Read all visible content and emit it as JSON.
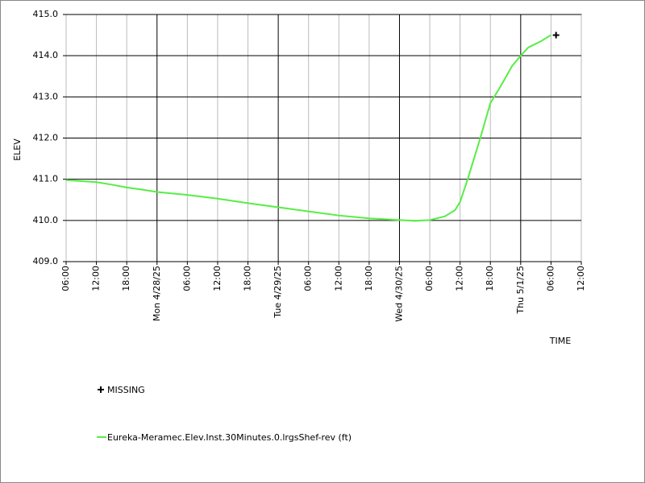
{
  "chart_data": {
    "type": "line",
    "x_label": "TIME",
    "y_label": "ELEV",
    "xlim": [
      0,
      102
    ],
    "ylim": [
      409,
      415
    ],
    "xticks": [
      {
        "value": 0,
        "label": "06:00"
      },
      {
        "value": 6,
        "label": "12:00"
      },
      {
        "value": 12,
        "label": "18:00"
      },
      {
        "value": 18,
        "label": "Mon 4/28/25"
      },
      {
        "value": 24,
        "label": "06:00"
      },
      {
        "value": 30,
        "label": "12:00"
      },
      {
        "value": 36,
        "label": "18:00"
      },
      {
        "value": 42,
        "label": "Tue 4/29/25"
      },
      {
        "value": 48,
        "label": "06:00"
      },
      {
        "value": 54,
        "label": "12:00"
      },
      {
        "value": 60,
        "label": "18:00"
      },
      {
        "value": 66,
        "label": "Wed 4/30/25"
      },
      {
        "value": 72,
        "label": "06:00"
      },
      {
        "value": 78,
        "label": "12:00"
      },
      {
        "value": 84,
        "label": "18:00"
      },
      {
        "value": 90,
        "label": "Thu 5/1/25"
      },
      {
        "value": 96,
        "label": "06:00"
      },
      {
        "value": 102,
        "label": "12:00"
      }
    ],
    "yticks": [
      {
        "value": 409,
        "label": "409.0"
      },
      {
        "value": 410,
        "label": "410.0"
      },
      {
        "value": 411,
        "label": "411.0"
      },
      {
        "value": 412,
        "label": "412.0"
      },
      {
        "value": 413,
        "label": "413.0"
      },
      {
        "value": 414,
        "label": "414.0"
      },
      {
        "value": 415,
        "label": "415.0"
      }
    ],
    "grid": true,
    "series": [
      {
        "name": "Eureka-Meramec.Elev.Inst.30Minutes.0.lrgsShef-rev (ft)",
        "color": "#55ee44",
        "x": [
          0,
          6,
          9,
          12,
          15,
          18,
          24,
          30,
          36,
          42,
          48,
          54,
          60,
          66,
          69,
          72,
          75,
          77,
          78,
          79.5,
          82,
          84,
          86,
          88.3,
          90,
          91.5,
          94,
          96
        ],
        "values": [
          410.98,
          410.93,
          410.87,
          410.8,
          410.75,
          410.69,
          410.62,
          410.53,
          410.42,
          410.32,
          410.22,
          410.12,
          410.05,
          410.01,
          409.99,
          410.01,
          410.1,
          410.25,
          410.45,
          411.0,
          412.0,
          412.85,
          413.25,
          413.75,
          414.0,
          414.2,
          414.35,
          414.5
        ]
      },
      {
        "name": "MISSING",
        "color": "#000000",
        "marker": "+",
        "x": [
          97
        ],
        "values": [
          414.5
        ]
      }
    ]
  }
}
